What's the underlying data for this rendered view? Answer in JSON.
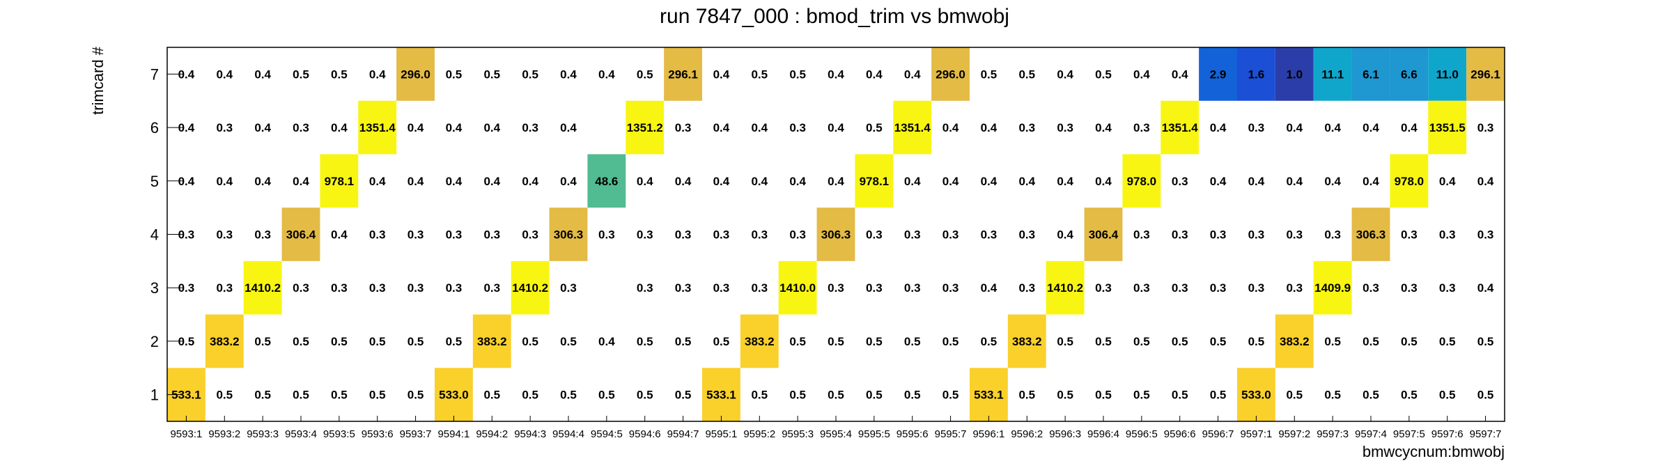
{
  "chart_data": {
    "type": "heatmap",
    "title": "run 7847_000 : bmod_trim vs bmwobj",
    "xlabel": "bmwcycnum:bmwobj",
    "ylabel": "trimcard #",
    "x_categories": [
      "9593:1",
      "9593:2",
      "9593:3",
      "9593:4",
      "9593:5",
      "9593:6",
      "9593:7",
      "9594:1",
      "9594:2",
      "9594:3",
      "9594:4",
      "9594:5",
      "9594:6",
      "9594:7",
      "9595:1",
      "9595:2",
      "9595:3",
      "9595:4",
      "9595:5",
      "9595:6",
      "9595:7",
      "9596:1",
      "9596:2",
      "9596:3",
      "9596:4",
      "9596:5",
      "9596:6",
      "9596:7",
      "9597:1",
      "9597:2",
      "9597:3",
      "9597:4",
      "9597:5",
      "9597:6",
      "9597:7"
    ],
    "y_categories": [
      "1",
      "2",
      "3",
      "4",
      "5",
      "6",
      "7"
    ],
    "rows": [
      {
        "y": "7",
        "values": [
          0.4,
          0.4,
          0.4,
          0.5,
          0.5,
          0.4,
          296.0,
          0.5,
          0.5,
          0.5,
          0.4,
          0.4,
          0.5,
          296.1,
          0.4,
          0.5,
          0.5,
          0.4,
          0.4,
          0.4,
          296.0,
          0.5,
          0.5,
          0.4,
          0.5,
          0.4,
          0.4,
          2.9,
          1.6,
          1.0,
          11.1,
          6.1,
          6.6,
          11.0,
          296.1
        ]
      },
      {
        "y": "6",
        "values": [
          0.4,
          0.3,
          0.4,
          0.3,
          0.4,
          1351.4,
          0.4,
          0.4,
          0.4,
          0.3,
          0.4,
          null,
          1351.2,
          0.3,
          0.4,
          0.4,
          0.3,
          0.4,
          0.5,
          1351.4,
          0.4,
          0.4,
          0.3,
          0.3,
          0.4,
          0.3,
          1351.4,
          0.4,
          0.3,
          0.4,
          0.4,
          0.4,
          0.4,
          1351.5,
          0.3
        ]
      },
      {
        "y": "5",
        "values": [
          0.4,
          0.4,
          0.4,
          0.4,
          978.1,
          0.4,
          0.4,
          0.4,
          0.4,
          0.4,
          0.4,
          48.6,
          0.4,
          0.4,
          0.4,
          0.4,
          0.4,
          0.4,
          978.1,
          0.4,
          0.4,
          0.4,
          0.4,
          0.4,
          0.4,
          978.0,
          0.3,
          0.4,
          0.4,
          0.4,
          0.4,
          0.4,
          978.0,
          0.4,
          0.4
        ]
      },
      {
        "y": "4",
        "values": [
          0.3,
          0.3,
          0.3,
          306.4,
          0.4,
          0.3,
          0.3,
          0.3,
          0.3,
          0.3,
          306.3,
          0.3,
          0.3,
          0.3,
          0.3,
          0.3,
          0.3,
          306.3,
          0.3,
          0.3,
          0.3,
          0.3,
          0.3,
          0.4,
          306.4,
          0.3,
          0.3,
          0.3,
          0.3,
          0.3,
          0.3,
          306.3,
          0.3,
          0.3,
          0.3
        ]
      },
      {
        "y": "3",
        "values": [
          0.3,
          0.3,
          1410.2,
          0.3,
          0.3,
          0.3,
          0.3,
          0.3,
          0.3,
          1410.2,
          0.3,
          null,
          0.3,
          0.3,
          0.3,
          0.3,
          1410.0,
          0.3,
          0.3,
          0.3,
          0.3,
          0.4,
          0.3,
          1410.2,
          0.3,
          0.3,
          0.3,
          0.3,
          0.3,
          0.3,
          1409.9,
          0.3,
          0.3,
          0.3,
          0.4
        ]
      },
      {
        "y": "2",
        "values": [
          0.5,
          383.2,
          0.5,
          0.5,
          0.5,
          0.5,
          0.5,
          0.5,
          383.2,
          0.5,
          0.5,
          0.4,
          0.5,
          0.5,
          0.5,
          383.2,
          0.5,
          0.5,
          0.5,
          0.5,
          0.5,
          0.5,
          383.2,
          0.5,
          0.5,
          0.5,
          0.5,
          0.5,
          0.5,
          383.2,
          0.5,
          0.5,
          0.5,
          0.5,
          0.5
        ]
      },
      {
        "y": "1",
        "values": [
          533.1,
          0.5,
          0.5,
          0.5,
          0.5,
          0.5,
          0.5,
          533.0,
          0.5,
          0.5,
          0.5,
          0.5,
          0.5,
          0.5,
          533.1,
          0.5,
          0.5,
          0.5,
          0.5,
          0.5,
          0.5,
          533.1,
          0.5,
          0.5,
          0.5,
          0.5,
          0.5,
          0.5,
          533.0,
          0.5,
          0.5,
          0.5,
          0.5,
          0.5,
          0.5
        ]
      }
    ],
    "colors": {
      "very_high": "#f8f513",
      "high": "#fad02b",
      "mid_high": "#e3bb45",
      "mid": "#51bb91",
      "low_mid": "#1f97d0",
      "low": "#1362d8",
      "very_low": "#1b4fd6",
      "lowest": "#2b3da8",
      "cyan": "#10a6cc"
    }
  }
}
